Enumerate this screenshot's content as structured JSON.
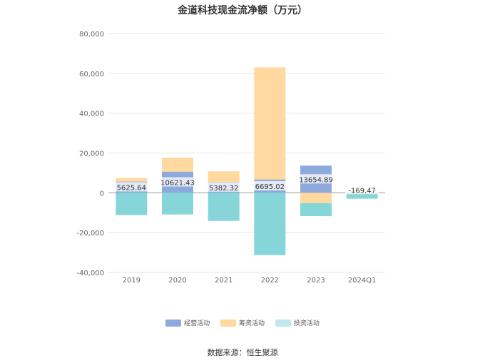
{
  "title": "金道科技现金流净额（万元）",
  "source": "数据来源：恒生聚源",
  "chart_data": {
    "type": "bar",
    "stacked": true,
    "categories": [
      "2019",
      "2020",
      "2021",
      "2022",
      "2023",
      "2024Q1"
    ],
    "ylim": [
      -40000,
      80000
    ],
    "yticks": [
      "80,000",
      "60,000",
      "40,000",
      "20,000",
      "0",
      "-20,000",
      "-40,000"
    ],
    "ytick_values": [
      80000,
      60000,
      40000,
      20000,
      0,
      -20000,
      -40000
    ],
    "grid": true,
    "legend_position": "bottom",
    "series": [
      {
        "name": "经营活动",
        "color": "#8eaadc",
        "values": [
          5625.64,
          10621.43,
          5382.32,
          6695.02,
          13654.89,
          -169.47
        ],
        "labels": [
          "5625.64",
          "10621.43",
          "5382.32",
          "6695.02",
          "13654.89",
          "-169.47"
        ]
      },
      {
        "name": "筹资活动",
        "color": "#ffd9a0",
        "values": [
          1800,
          7000,
          5400,
          56300,
          -5200,
          1000
        ]
      },
      {
        "name": "投资活动",
        "color": "#86d5d8",
        "values": [
          -11200,
          -10900,
          -14100,
          -31300,
          -6500,
          -2800
        ]
      }
    ]
  }
}
